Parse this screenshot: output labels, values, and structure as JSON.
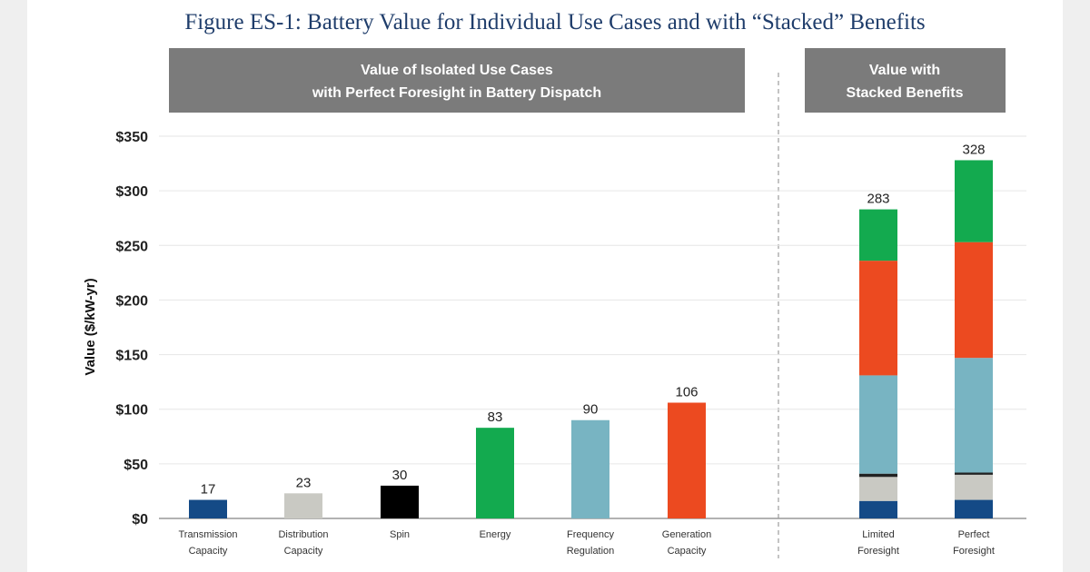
{
  "chart_data": {
    "type": "bar",
    "title": "Figure ES-1: Battery Value for Individual Use Cases and with “Stacked” Benefits",
    "ylabel": "Value ($/kW-yr)",
    "xlabel": "",
    "ylim": [
      0,
      350
    ],
    "yticks": [
      "$0",
      "$50",
      "$100",
      "$150",
      "$200",
      "$250",
      "$300",
      "$350"
    ],
    "grid": true,
    "panels": [
      {
        "header": [
          "Value of Isolated Use Cases",
          "with Perfect Foresight in Battery Dispatch"
        ]
      },
      {
        "header": [
          "Value with",
          "Stacked Benefits"
        ]
      }
    ],
    "isolated": {
      "categories": [
        [
          "Transmission",
          "Capacity"
        ],
        [
          "Distribution",
          "Capacity"
        ],
        [
          "Spin"
        ],
        [
          "Energy"
        ],
        [
          "Frequency",
          "Regulation"
        ],
        [
          "Generation",
          "Capacity"
        ]
      ],
      "values": [
        17,
        23,
        30,
        83,
        90,
        106
      ],
      "labels": [
        "17",
        "23",
        "30",
        "83",
        "90",
        "106"
      ],
      "colors": [
        "#144a86",
        "#c9c9c3",
        "#000000",
        "#13aa4f",
        "#78b4c2",
        "#ec4a20"
      ]
    },
    "stacked": {
      "categories": [
        [
          "Limited",
          "Foresight"
        ],
        [
          "Perfect",
          "Foresight"
        ]
      ],
      "totals": [
        "283",
        "328"
      ],
      "segment_order": [
        "Transmission Capacity",
        "Distribution Capacity",
        "Spin",
        "Frequency Regulation",
        "Generation Capacity",
        "Energy"
      ],
      "segment_colors": [
        "#144a86",
        "#c9c9c3",
        "#222222",
        "#78b4c2",
        "#ec4a20",
        "#13aa4f"
      ],
      "series": [
        {
          "values": [
            16,
            22,
            3,
            90,
            105,
            47
          ]
        },
        {
          "values": [
            17,
            23,
            2,
            105,
            106,
            75
          ]
        }
      ]
    }
  }
}
